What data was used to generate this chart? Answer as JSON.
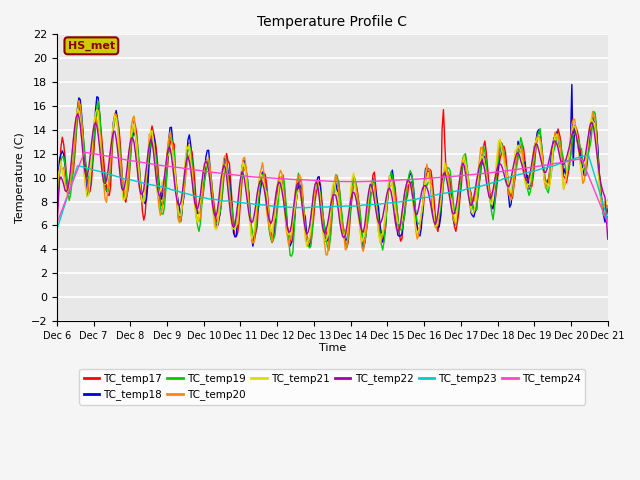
{
  "title": "Temperature Profile C",
  "xlabel": "Time",
  "ylabel": "Temperature (C)",
  "ylim": [
    -2,
    22
  ],
  "yticks": [
    -2,
    0,
    2,
    4,
    6,
    8,
    10,
    12,
    14,
    16,
    18,
    20,
    22
  ],
  "series_colors": {
    "TC_temp17": "#ff0000",
    "TC_temp18": "#0000dd",
    "TC_temp19": "#00cc00",
    "TC_temp20": "#ff8800",
    "TC_temp21": "#dddd00",
    "TC_temp22": "#aa00aa",
    "TC_temp23": "#00cccc",
    "TC_temp24": "#ff44cc"
  },
  "annotation_text": "HS_met",
  "annotation_color": "#8b0000",
  "annotation_bg": "#cccc00",
  "plot_bg_color": "#e8e8e8",
  "fig_bg_color": "#f5f5f5",
  "grid_color": "#ffffff",
  "n_points": 400
}
